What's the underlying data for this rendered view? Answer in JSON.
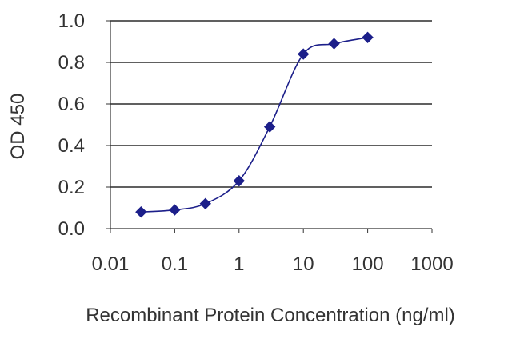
{
  "chart_data": {
    "type": "line",
    "title": "",
    "xlabel": "Recombinant Protein Concentration (ng/ml)",
    "ylabel": "OD 450",
    "x_scale": "log",
    "xlim": [
      0.01,
      1000
    ],
    "ylim": [
      0.0,
      1.0
    ],
    "x_tick_labels": [
      "0.01",
      "0.1",
      "1",
      "10",
      "100",
      "1000"
    ],
    "x_ticks": [
      0.01,
      0.1,
      1,
      10,
      100,
      1000
    ],
    "y_tick_labels": [
      "0.0",
      "0.2",
      "0.4",
      "0.6",
      "0.8",
      "1.0"
    ],
    "y_ticks": [
      0.0,
      0.2,
      0.4,
      0.6,
      0.8,
      1.0
    ],
    "grid": "horizontal",
    "legend": "none",
    "series": [
      {
        "x": [
          0.03,
          0.1,
          0.3,
          1,
          3,
          10,
          30,
          100
        ],
        "y": [
          0.08,
          0.09,
          0.12,
          0.23,
          0.49,
          0.84,
          0.89,
          0.92
        ],
        "marker": "diamond",
        "color": "#1c1f8a"
      }
    ],
    "colors": {
      "series": "#1c1f8a",
      "grid": "#000000",
      "axis": "#333333"
    }
  }
}
